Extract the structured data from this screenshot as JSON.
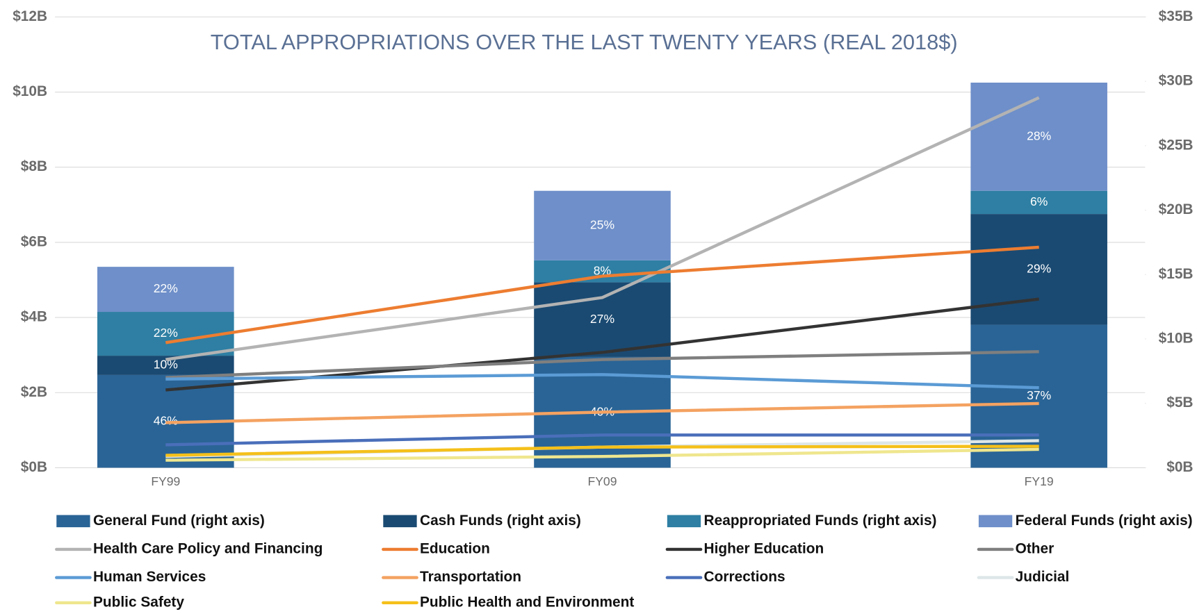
{
  "chart_data": {
    "type": "bar",
    "title": "TOTAL APPROPRIATIONS OVER THE LAST TWENTY YEARS (REAL 2018$)",
    "categories": [
      "FY99",
      "FY09",
      "FY19"
    ],
    "ylim": [
      0,
      12
    ],
    "yticks": [
      {
        "value": 0,
        "label": "$0B"
      },
      {
        "value": 2,
        "label": "$2B"
      },
      {
        "value": 4,
        "label": "$4B"
      },
      {
        "value": 6,
        "label": "$6B"
      },
      {
        "value": 8,
        "label": "$8B"
      },
      {
        "value": 10,
        "label": "$10B"
      },
      {
        "value": 12,
        "label": "$12B"
      }
    ],
    "y2lim": [
      0,
      35
    ],
    "y2ticks": [
      {
        "value": 0,
        "label": "$0B"
      },
      {
        "value": 5,
        "label": "$5B"
      },
      {
        "value": 10,
        "label": "$10B"
      },
      {
        "value": 15,
        "label": "$15B"
      },
      {
        "value": 20,
        "label": "$20B"
      },
      {
        "value": 25,
        "label": "$25B"
      },
      {
        "value": 30,
        "label": "$30B"
      },
      {
        "value": 35,
        "label": "$35B"
      }
    ],
    "grid": true,
    "series": [
      {
        "name": "General Fund (right axis)",
        "type": "bar",
        "axis": "y2",
        "color": "#2a6496",
        "values": [
          7.2,
          8.6,
          11.1
        ],
        "value_labels": [
          "46%",
          "40%",
          "37%"
        ]
      },
      {
        "name": "Cash Funds (right axis)",
        "type": "bar",
        "axis": "y2",
        "color": "#1a4a72",
        "values": [
          1.5,
          5.8,
          8.6
        ],
        "value_labels": [
          "10%",
          "27%",
          "29%"
        ]
      },
      {
        "name": "Reappropriated Funds (right axis)",
        "type": "bar",
        "axis": "y2",
        "color": "#2e7fa3",
        "values": [
          3.4,
          1.7,
          1.8
        ],
        "value_labels": [
          "22%",
          "8%",
          "6%"
        ]
      },
      {
        "name": "Federal Funds (right axis)",
        "type": "bar",
        "axis": "y2",
        "color": "#6e8fc9",
        "values": [
          3.5,
          5.4,
          8.4
        ],
        "value_labels": [
          "22%",
          "25%",
          "28%"
        ]
      },
      {
        "name": "Health Care Policy and Financing",
        "type": "line",
        "color": "#b3b3b3",
        "values": [
          2.88,
          4.53,
          9.85
        ]
      },
      {
        "name": "Education",
        "type": "line",
        "color": "#ed7d31",
        "values": [
          3.33,
          5.1,
          5.87
        ]
      },
      {
        "name": "Higher Education",
        "type": "line",
        "color": "#333333",
        "values": [
          2.07,
          3.07,
          4.49
        ]
      },
      {
        "name": "Other",
        "type": "line",
        "color": "#7f7f7f",
        "values": [
          2.4,
          2.88,
          3.09
        ]
      },
      {
        "name": "Human Services",
        "type": "line",
        "color": "#5b9bd5",
        "values": [
          2.36,
          2.48,
          2.13
        ]
      },
      {
        "name": "Transportation",
        "type": "line",
        "color": "#f4a261",
        "values": [
          1.2,
          1.48,
          1.71
        ]
      },
      {
        "name": "Corrections",
        "type": "line",
        "color": "#4a6fba",
        "values": [
          0.61,
          0.87,
          0.87
        ]
      },
      {
        "name": "Judicial",
        "type": "line",
        "color": "#dde6e8",
        "values": [
          0.3,
          0.55,
          0.72
        ]
      },
      {
        "name": "Public Safety",
        "type": "line",
        "color": "#efe68e",
        "values": [
          0.2,
          0.3,
          0.49
        ]
      },
      {
        "name": "Public Health and Environment",
        "type": "line",
        "color": "#f5c01a",
        "values": [
          0.33,
          0.55,
          0.57
        ]
      }
    ]
  }
}
